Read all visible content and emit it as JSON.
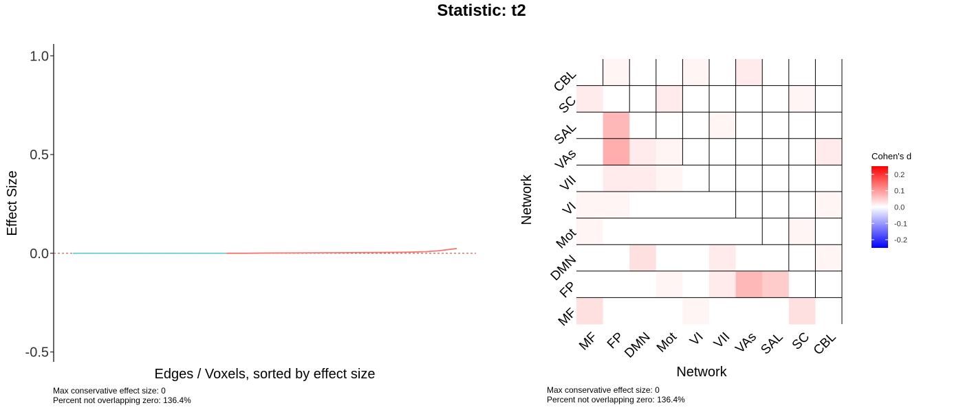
{
  "title": "Statistic: t2",
  "chart_data": [
    {
      "type": "line",
      "title": "",
      "xlabel": "Edges / Voxels, sorted by effect size",
      "ylabel": "Effect Size",
      "ylim": [
        -0.55,
        1.06
      ],
      "yticks": [
        -0.5,
        0.0,
        0.5,
        1.0
      ],
      "ytick_labels": [
        "-0.5",
        "0.0",
        "0.5",
        "1.0"
      ],
      "reference_line": {
        "y": 0,
        "style": "dashed",
        "color": "#c0392b"
      },
      "colors": {
        "negative": "#4ecdc4",
        "positive": "#f8766d"
      },
      "x": [
        0,
        20,
        40,
        45,
        50,
        60,
        70,
        80,
        85,
        88,
        90,
        92,
        95,
        100
      ],
      "y": [
        0.0,
        0.0,
        0.0,
        0.0,
        0.001,
        0.002,
        0.003,
        0.004,
        0.005,
        0.006,
        0.007,
        0.008,
        0.012,
        0.024
      ],
      "sign_change_x": 40,
      "grid": false,
      "notes": [
        "Max conservative effect size: 0",
        "Percent not overlapping zero: 136.4%"
      ]
    },
    {
      "type": "heatmap",
      "title": "",
      "xlabel": "Network",
      "ylabel": "Network",
      "x_categories": [
        "MF",
        "FP",
        "DMN",
        "Mot",
        "VI",
        "VII",
        "VAs",
        "SAL",
        "SC",
        "CBL"
      ],
      "y_categories": [
        "MF",
        "FP",
        "DMN",
        "Mot",
        "VI",
        "VII",
        "VAs",
        "SAL",
        "SC",
        "CBL"
      ],
      "values": [
        [
          0.03,
          0.0,
          0.0,
          0.0,
          0.01,
          0.0,
          0.0,
          0.0,
          0.03,
          0.0
        ],
        [
          0.0,
          0.0,
          0.0,
          0.01,
          0.0,
          0.02,
          0.07,
          0.05,
          0.0,
          0.0
        ],
        [
          0.0,
          0.0,
          0.03,
          0.0,
          0.0,
          0.02,
          0.0,
          0.0,
          0.0,
          0.01
        ],
        [
          0.01,
          0.0,
          0.0,
          0.0,
          0.0,
          0.0,
          0.0,
          0.0,
          0.01,
          0.0
        ],
        [
          0.01,
          0.01,
          0.0,
          0.0,
          0.0,
          0.0,
          0.0,
          0.0,
          0.0,
          0.01
        ],
        [
          0.0,
          0.02,
          0.02,
          0.01,
          0.0,
          0.0,
          0.0,
          0.0,
          0.0,
          0.0
        ],
        [
          0.0,
          0.08,
          0.02,
          0.01,
          0.0,
          0.0,
          0.0,
          0.0,
          0.0,
          0.02
        ],
        [
          0.0,
          0.07,
          0.0,
          0.0,
          0.0,
          0.01,
          0.0,
          0.0,
          0.0,
          0.0
        ],
        [
          0.02,
          0.0,
          0.0,
          0.02,
          0.0,
          0.0,
          0.0,
          0.0,
          0.01,
          0.0
        ],
        [
          0.0,
          0.01,
          0.0,
          0.0,
          0.01,
          0.0,
          0.02,
          0.0,
          0.0,
          0.0
        ]
      ],
      "grid_pattern": "staircase",
      "color_scale": {
        "title": "Cohen's d",
        "min": -0.25,
        "max": 0.25,
        "low": "#0000ff",
        "mid": "#ffffff",
        "high": "#ff0000",
        "ticks": [
          0.2,
          0.1,
          0.0,
          -0.1,
          -0.2
        ],
        "tick_labels": [
          "0.2",
          "0.1",
          "0.0",
          "-0.1",
          "-0.2"
        ]
      },
      "notes": [
        "Max conservative effect size: 0",
        "Percent not overlapping zero: 136.4%"
      ]
    }
  ]
}
